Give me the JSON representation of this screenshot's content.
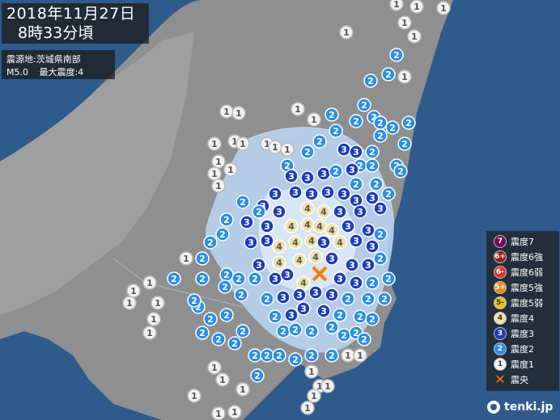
{
  "title": {
    "date": "2018年11月27日",
    "time": "8時33分頃"
  },
  "info": {
    "epicenter_label": "震源地:",
    "epicenter": "茨城県南部",
    "magnitude": "M5.0",
    "max_intensity_label": "最大震度:",
    "max_intensity": "4"
  },
  "legend": [
    {
      "icon": "7",
      "label": "震度7",
      "color": "#7a0a55"
    },
    {
      "icon": "6+",
      "label": "震度6強",
      "color": "#9b1e16"
    },
    {
      "icon": "6-",
      "label": "震度6弱",
      "color": "#d8392b"
    },
    {
      "icon": "5+",
      "label": "震度5強",
      "color": "#e48a1f"
    },
    {
      "icon": "5-",
      "label": "震度5弱",
      "color": "#e8c21d"
    },
    {
      "icon": "4",
      "label": "震度4",
      "color": "#efe2a8"
    },
    {
      "icon": "3",
      "label": "震度3",
      "color": "#1f3cb8"
    },
    {
      "icon": "2",
      "label": "震度2",
      "color": "#2b8fe3"
    },
    {
      "icon": "1",
      "label": "震度1",
      "color": "#f2f2f2"
    },
    {
      "icon": "x",
      "label": "震央",
      "color": "#ff7a00"
    }
  ],
  "brand": "tenki.jp",
  "colors": {
    "sea": "#2f5b8c",
    "land": "#8c8c8c",
    "land_light": "#b9b9b9",
    "intensity_region": "#b8d3ee"
  }
}
